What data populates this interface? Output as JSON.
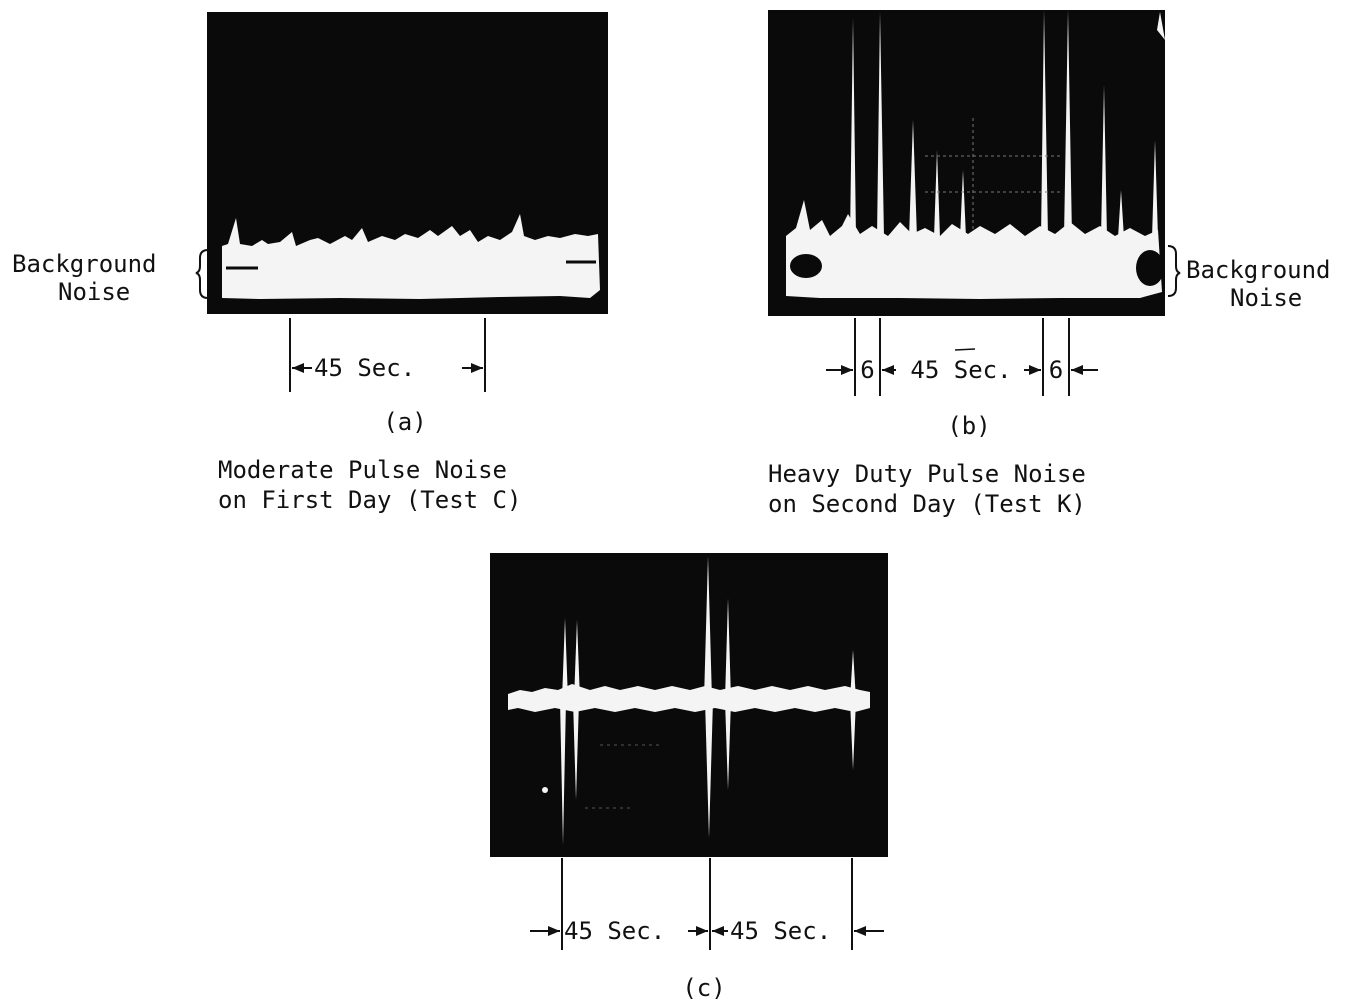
{
  "panels": {
    "a": {
      "tag": "(a)",
      "caption_line1": "Moderate Pulse Noise",
      "caption_line2": "on First Day (Test C)",
      "side_label_line1": "Background",
      "side_label_line2": "Noise",
      "interval_label": "45 Sec."
    },
    "b": {
      "tag": "(b)",
      "caption_line1": "Heavy Duty Pulse Noise",
      "caption_line2": "on Second Day (Test K)",
      "side_label_line1": "Background",
      "side_label_line2": "Noise",
      "interval_label": "45 Sec.",
      "short_interval_left": "6",
      "short_interval_right": "6"
    },
    "c": {
      "tag": "(c)",
      "interval_label_left": "45 Sec.",
      "interval_label_right": "45 Sec."
    }
  },
  "colors": {
    "photo_background": "#0a0a0a",
    "trace": "#f4f4f4",
    "ink": "#111111"
  }
}
